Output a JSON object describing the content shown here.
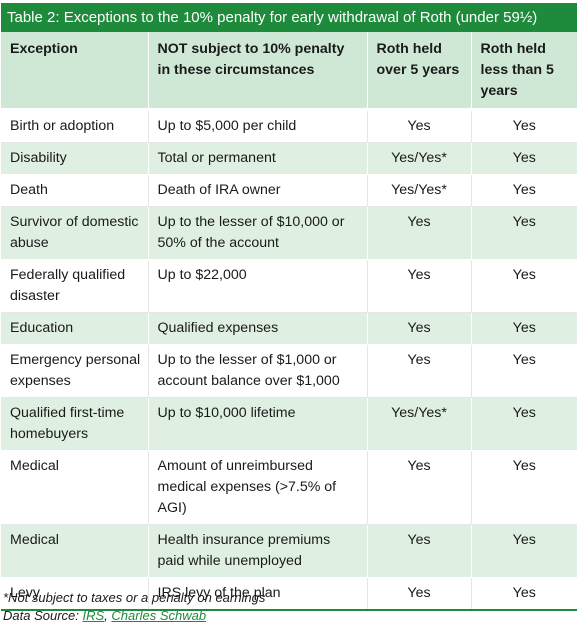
{
  "title": "Table 2: Exceptions to the 10% penalty for early withdrawal of Roth (under 59½)",
  "headers": [
    "Exception",
    "NOT subject to 10% penalty in these circumstances",
    "Roth held over 5 years",
    "Roth held less than 5 years"
  ],
  "rows": [
    {
      "exception": "Birth or adoption",
      "circumstance": "Up to $5,000 per child",
      "over5": "Yes",
      "under5": "Yes"
    },
    {
      "exception": "Disability",
      "circumstance": "Total or permanent",
      "over5": "Yes/Yes*",
      "under5": "Yes"
    },
    {
      "exception": "Death",
      "circumstance": "Death of IRA owner",
      "over5": "Yes/Yes*",
      "under5": "Yes"
    },
    {
      "exception": "Survivor of domestic abuse",
      "circumstance": "Up to the lesser of $10,000 or 50% of the account",
      "over5": "Yes",
      "under5": "Yes"
    },
    {
      "exception": "Federally qualified disaster",
      "circumstance": "Up to $22,000",
      "over5": "Yes",
      "under5": "Yes"
    },
    {
      "exception": "Education",
      "circumstance": "Qualified expenses",
      "over5": "Yes",
      "under5": "Yes"
    },
    {
      "exception": "Emergency personal expenses",
      "circumstance": "Up to the lesser of $1,000 or account balance over $1,000",
      "over5": "Yes",
      "under5": "Yes"
    },
    {
      "exception": "Qualified first-time homebuyers",
      "circumstance": "Up to $10,000 lifetime",
      "over5": "Yes/Yes*",
      "under5": "Yes"
    },
    {
      "exception": "Medical",
      "circumstance": "Amount of unreimbursed medical expenses (>7.5% of AGI)",
      "over5": "Yes",
      "under5": "Yes"
    },
    {
      "exception": "Medical",
      "circumstance": "Health insurance premiums paid while unemployed",
      "over5": "Yes",
      "under5": "Yes"
    },
    {
      "exception": "Levy",
      "circumstance": "IRS levy of the plan",
      "over5": "Yes",
      "under5": "Yes"
    }
  ],
  "footnote": "*Not subject to taxes or a penalty on earnings",
  "source": {
    "prefix": "Data Source: ",
    "separator": ", ",
    "links": [
      "IRS",
      "Charles Schwab"
    ]
  },
  "colors": {
    "title_bg": "#1e8a3c",
    "header_bg": "#cfe8d5",
    "row_alt_bg": "#dff0e2",
    "link": "#1e8a3c"
  }
}
